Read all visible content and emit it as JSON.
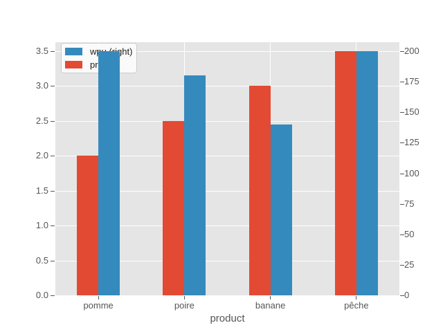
{
  "chart_data": {
    "type": "bar",
    "title": "",
    "xlabel": "product",
    "categories": [
      "pomme",
      "poire",
      "banane",
      "pêche"
    ],
    "series": [
      {
        "name": "pr",
        "axis": "left",
        "color": "#E24A33",
        "values": [
          2.0,
          2.5,
          3.0,
          3.5
        ]
      },
      {
        "name": "wpu (right)",
        "axis": "right",
        "color": "#348ABD",
        "values": [
          200,
          180,
          140,
          200
        ]
      }
    ],
    "left_axis": {
      "tick_labels": [
        "0.0",
        "0.5",
        "1.0",
        "1.5",
        "2.0",
        "2.5",
        "3.0",
        "3.5"
      ],
      "lim": [
        0,
        3.5
      ]
    },
    "right_axis": {
      "tick_labels": [
        "0",
        "25",
        "50",
        "75",
        "100",
        "125",
        "150",
        "175",
        "200"
      ],
      "lim": [
        0,
        200
      ]
    },
    "legend": {
      "position": "upper left",
      "entries": [
        {
          "label": "wpu (right)",
          "color": "#348ABD"
        },
        {
          "label": "pr",
          "color": "#E24A33"
        }
      ]
    },
    "grid": true,
    "style": {
      "plot_bg": "#E5E5E5",
      "figure_bg": "#FFFFFF",
      "grid_color": "#FFFFFF",
      "tick_text_color": "#555555"
    }
  }
}
